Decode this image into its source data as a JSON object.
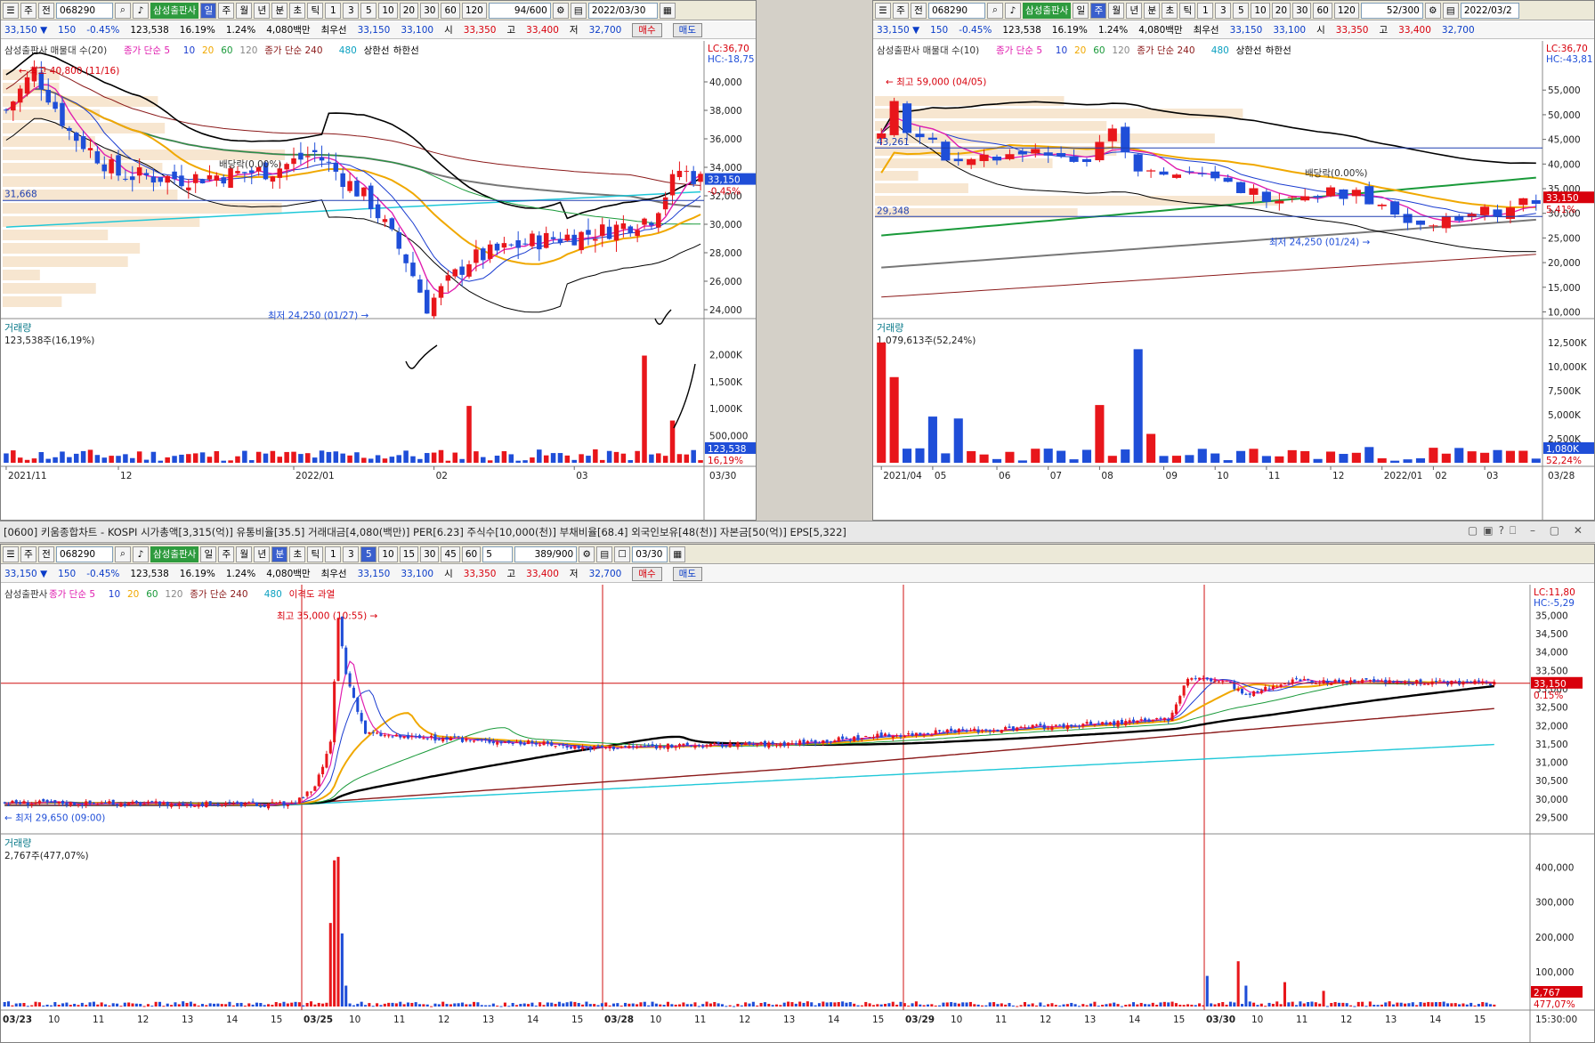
{
  "stock_name": "삼성출판사",
  "stock_code": "068290",
  "toolbar": {
    "prefix": [
      "주",
      "전"
    ],
    "periods": [
      "일",
      "주",
      "월",
      "년",
      "분",
      "초",
      "틱"
    ],
    "nums": [
      "1",
      "3",
      "5",
      "10",
      "20",
      "30",
      "60",
      "120"
    ],
    "min_nums": [
      "1",
      "3",
      "5",
      "10",
      "15",
      "30",
      "45",
      "60"
    ],
    "min_sel": "5"
  },
  "panels": {
    "daily": {
      "count": "94/600",
      "date": "2022/03/30"
    },
    "weekly": {
      "count": "52/300",
      "date": "2022/03/2"
    },
    "minute": {
      "count": "389/900",
      "date": "03/30",
      "interval": "5"
    }
  },
  "quote": {
    "price": "33,150 ▼",
    "change": "150",
    "pct": "-0.45%",
    "volume": "123,538",
    "turnover_pct": "16.19%",
    "vol_ratio": "1.24%",
    "amount": "4,080백만",
    "best_label": "최우선",
    "ask": "33,150",
    "bid": "33,100",
    "open_label": "시",
    "open": "33,350",
    "high_label": "고",
    "high": "33,400",
    "low_label": "저",
    "low": "32,700",
    "buy": "매수",
    "sell": "매도"
  },
  "window_title": "[0600] 키움종합차트 - KOSPI 시가총액[3,315(억)] 유통비율[35.5] 거래대금[4,080(백만)] PER[6.23] 주식수[10,000(천)] 부채비율[68.4] 외국인보유[48(천)] 자본금[50(억)] EPS[5,322]",
  "colors": {
    "up": "#e8161b",
    "down": "#1f4ed8",
    "ma5": "#e01fb0",
    "ma10": "#1a3cd0",
    "ma20": "#f0a800",
    "ma60": "#1a9a3a",
    "ma120": "#888888",
    "ma240": "#8b1a1a",
    "bb": "#000000"
  },
  "chart_data": [
    {
      "type": "candlestick",
      "label": "daily",
      "legend": [
        "삼성출판사 매물대 수(20)",
        "종가 단순 5",
        "10",
        "20",
        "60",
        "120",
        "종가 단순 240",
        "480",
        "상한선",
        "하한선"
      ],
      "ylim": [
        23500,
        41500
      ],
      "yticks": [
        "40,000",
        "38,000",
        "36,000",
        "34,000",
        "32,000",
        "30,000",
        "28,000",
        "26,000",
        "24,000"
      ],
      "ytick_values": [
        40000,
        38000,
        36000,
        34000,
        32000,
        30000,
        28000,
        26000,
        24000
      ],
      "xlabels": [
        "2021/11",
        "12",
        "2022/01",
        "02",
        "03"
      ],
      "xlabels_end": "03/30",
      "xlabel_idx": [
        0,
        16,
        41,
        61,
        81
      ],
      "n": 100,
      "annotations": {
        "high": "최고 40,800 (11/16)",
        "low": "최저 24,250 (01/27)",
        "dividend": "배당락(0.00%)",
        "hline": "31,668",
        "lc": "LC:36,70",
        "hc": "HC:-18,75",
        "price_tag": "33,150",
        "pct_tag": "-0.45%"
      },
      "key_prices": {
        "start": 38000,
        "high": 40800,
        "mid": 33000,
        "low": 24250,
        "rebound": 28500,
        "end": 33150
      },
      "volume": {
        "title": "거래량",
        "value": "123,538주(16,19%)",
        "yticks": [
          "2,000K",
          "1,500K",
          "1,000K",
          "500,000"
        ],
        "ytick_values": [
          2000,
          1500,
          1000,
          500
        ],
        "ylim": [
          0,
          2400
        ],
        "tag": "123,538",
        "tag2": "16,19%",
        "spikes": [
          {
            "i": 66,
            "v": 1050
          },
          {
            "i": 91,
            "v": 1980
          },
          {
            "i": 95,
            "v": 780
          }
        ]
      }
    },
    {
      "type": "candlestick",
      "label": "weekly",
      "legend": [
        "삼성출판사 매물대 수(10)",
        "종가 단순 5",
        "10",
        "20",
        "60",
        "120",
        "종가 단순 240",
        "480",
        "상한선",
        "하한선"
      ],
      "ylim": [
        9000,
        61000
      ],
      "yticks": [
        "55,000",
        "50,000",
        "45,000",
        "40,000",
        "35,000",
        "30,000",
        "25,000",
        "20,000",
        "15,000",
        "10,000"
      ],
      "ytick_values": [
        55000,
        50000,
        45000,
        40000,
        35000,
        30000,
        25000,
        20000,
        15000,
        10000
      ],
      "xlabels": [
        "2021/04",
        "05",
        "06",
        "07",
        "08",
        "09",
        "10",
        "11",
        "12",
        "2022/01",
        "02",
        "03"
      ],
      "xlabels_end": "03/28",
      "xlabel_idx": [
        0,
        4,
        9,
        13,
        17,
        22,
        26,
        30,
        35,
        39,
        43,
        47
      ],
      "n": 52,
      "annotations": {
        "high": "최고 59,000 (04/05)",
        "low": "최저 24,250 (01/24)",
        "dividend": "배당락(0.00%)",
        "hline1": "43,261",
        "hline2": "29,348",
        "lc": "LC:36,70",
        "hc": "HC:-43,81",
        "price_tag": "33,150",
        "pct_tag": "5.41%"
      },
      "volume": {
        "title": "거래량",
        "value": "1,079,613주(52,24%)",
        "yticks": [
          "12,500K",
          "10,000K",
          "7,500K",
          "5,000K",
          "2,500K"
        ],
        "ytick_values": [
          12500,
          10000,
          7500,
          5000,
          2500
        ],
        "ylim": [
          0,
          13500
        ],
        "tag": "1,080K",
        "tag2": "52,24%"
      }
    },
    {
      "type": "candlestick",
      "label": "5-minute",
      "legend": [
        "삼성출판사",
        "종가 단순 5",
        "10",
        "20",
        "60",
        "120",
        "종가 단순 240",
        "480",
        "이격도 과열"
      ],
      "ylim": [
        29100,
        35300
      ],
      "yticks": [
        "35,000",
        "34,500",
        "34,000",
        "33,500",
        "33,000",
        "32,500",
        "32,000",
        "31,500",
        "31,000",
        "30,500",
        "30,000",
        "29,500"
      ],
      "ytick_values": [
        35000,
        34500,
        34000,
        33500,
        33000,
        32500,
        32000,
        31500,
        31000,
        30500,
        30000,
        29500
      ],
      "xlabels": [
        "03/23",
        "10",
        "11",
        "12",
        "13",
        "14",
        "15",
        "03/25",
        "10",
        "11",
        "12",
        "13",
        "14",
        "15",
        "03/28",
        "10",
        "11",
        "12",
        "13",
        "14",
        "15",
        "03/29",
        "10",
        "11",
        "12",
        "13",
        "14",
        "15",
        "03/30",
        "10",
        "11",
        "12",
        "13",
        "14",
        "15"
      ],
      "xlabels_end": "15:30:00",
      "annotations": {
        "high": "최고 35,000 (10:55)",
        "low": "최저 29,650 (09:00)",
        "lc": "LC:11,80",
        "hc": "HC:-5,29",
        "price_tag": "33,150",
        "pct_tag": "0.15%"
      },
      "volume": {
        "title": "거래량",
        "value": "2,767주(477,07%)",
        "yticks": [
          "400,000",
          "300,000",
          "200,000",
          "100,000"
        ],
        "ytick_values": [
          400000,
          300000,
          200000,
          100000
        ],
        "ylim": [
          0,
          450000
        ],
        "tag": "2,767",
        "tag2": "477,07%"
      }
    }
  ]
}
